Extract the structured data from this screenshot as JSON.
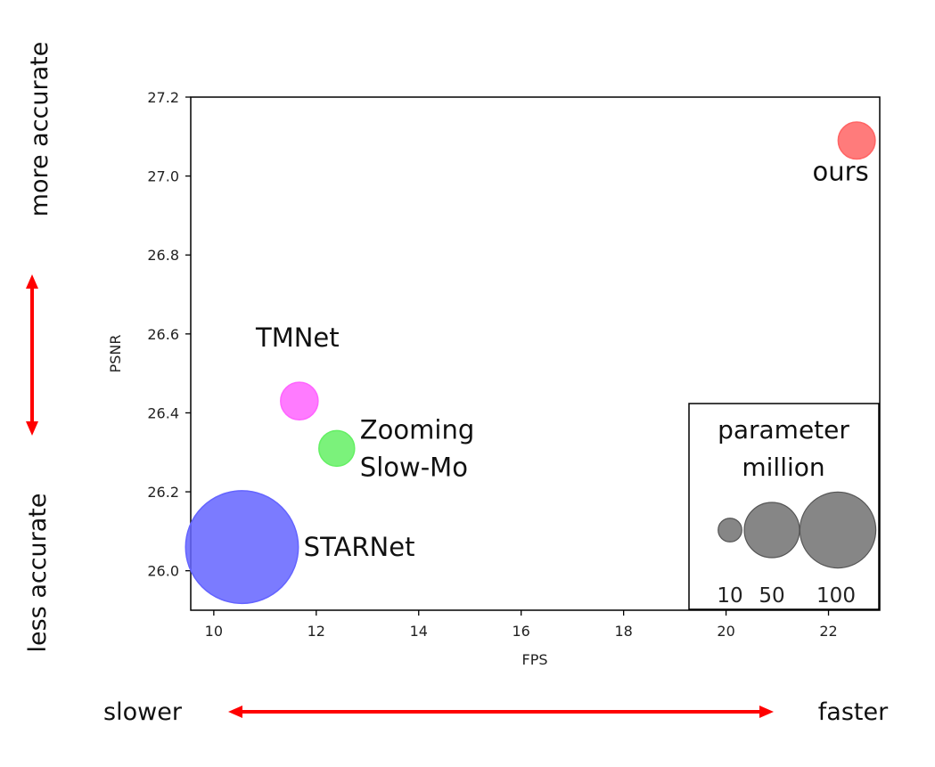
{
  "chart_data": {
    "type": "scatter",
    "xlabel": "FPS",
    "ylabel": "PSNR",
    "xlim": [
      9.55,
      23.0
    ],
    "ylim": [
      25.9,
      27.2
    ],
    "xticks": [
      10,
      12,
      14,
      16,
      18,
      20,
      22
    ],
    "yticks": [
      26.0,
      26.2,
      26.4,
      26.6,
      26.8,
      27.0,
      27.2
    ],
    "grid": false,
    "series": [
      {
        "name": "STARNet",
        "x": 10.55,
        "y": 26.06,
        "params_million": 111,
        "color": "#6464ff"
      },
      {
        "name": "TMNet",
        "x": 11.67,
        "y": 26.43,
        "params_million": 12.3,
        "color": "#ff64ff"
      },
      {
        "name": "Zooming Slow-Mo",
        "x": 12.4,
        "y": 26.31,
        "params_million": 11.1,
        "color": "#64f064"
      },
      {
        "name": "ours",
        "x": 22.55,
        "y": 27.09,
        "params_million": 12,
        "color": "#ff6464"
      }
    ],
    "point_labels": {
      "STARNet": [
        "STARNet"
      ],
      "TMNet": [
        "TMNet"
      ],
      "Zooming Slow-Mo": [
        "Zooming",
        "Slow-Mo"
      ],
      "ours": [
        "ours"
      ]
    },
    "size_legend": {
      "title_lines": [
        "parameter",
        "million"
      ],
      "sizes": [
        10,
        50,
        100
      ],
      "labels": [
        "10",
        "50",
        "100"
      ],
      "color": "#808080",
      "placement": "bottom-right"
    }
  },
  "annotations": {
    "more_accurate": "more accurate",
    "less_accurate": "less accurate",
    "slower": "slower",
    "faster": "faster",
    "arrow_color": "#ff0000"
  }
}
